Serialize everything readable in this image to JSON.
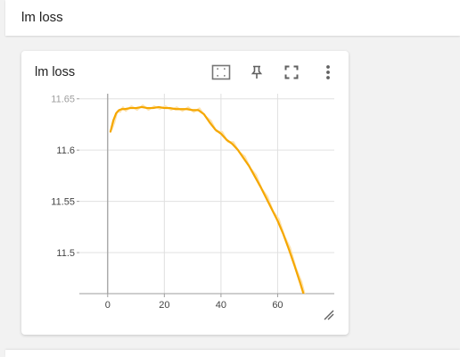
{
  "header": {
    "title": "lm loss"
  },
  "card": {
    "title": "lm loss",
    "toolbar": {
      "fit_icon": "fit-domain-icon",
      "pin_icon": "pin-icon",
      "fullscreen_icon": "fullscreen-icon",
      "more_icon": "more-vert-icon"
    }
  },
  "colors": {
    "series": "#f5a700",
    "series_raw": "#fde3b0",
    "grid": "#e0e0e0",
    "axis": "#9e9e9e"
  },
  "chart_data": {
    "type": "line",
    "title": "",
    "xlabel": "",
    "ylabel": "",
    "xlim": [
      -10,
      80
    ],
    "ylim": [
      11.46,
      11.655
    ],
    "x_ticks": [
      0,
      20,
      40,
      60
    ],
    "y_ticks": [
      11.5,
      11.55,
      11.6,
      11.65
    ],
    "x_tick_labels": [
      "0",
      "20",
      "40",
      "60"
    ],
    "y_tick_labels": [
      "11.5",
      "11.55",
      "11.6",
      "11.65"
    ],
    "grid": true,
    "series": [
      {
        "name": "",
        "smoothed": true,
        "x": [
          1,
          2,
          3,
          4,
          5,
          6,
          8,
          10,
          12,
          14,
          16,
          18,
          20,
          22,
          24,
          26,
          28,
          30,
          32,
          34,
          36,
          38,
          40,
          42,
          44,
          46,
          48,
          50,
          52,
          54,
          56,
          58,
          60,
          62,
          64,
          66,
          68,
          70
        ],
        "y": [
          11.618,
          11.629,
          11.636,
          11.639,
          11.64,
          11.64,
          11.641,
          11.641,
          11.642,
          11.641,
          11.641,
          11.642,
          11.641,
          11.641,
          11.64,
          11.64,
          11.64,
          11.639,
          11.639,
          11.635,
          11.627,
          11.62,
          11.616,
          11.61,
          11.606,
          11.6,
          11.592,
          11.584,
          11.574,
          11.564,
          11.553,
          11.542,
          11.531,
          11.518,
          11.503,
          11.487,
          11.47,
          11.452
        ]
      }
    ]
  }
}
